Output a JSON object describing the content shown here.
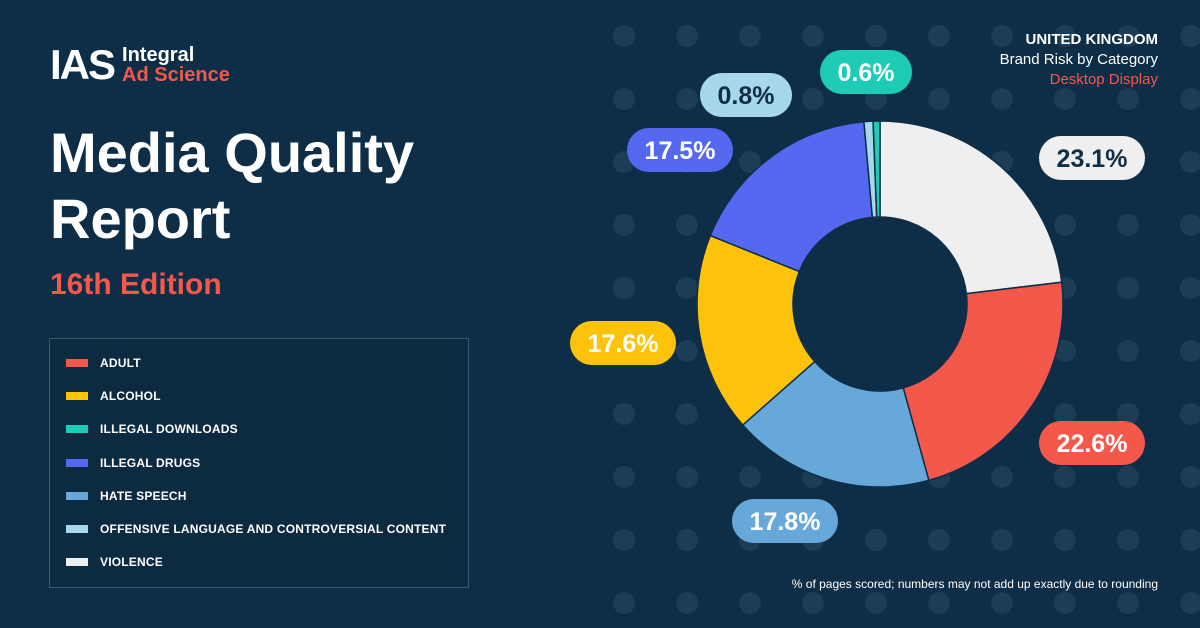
{
  "logo": {
    "mark": "IAS",
    "line1": "Integral",
    "line2": "Ad Science"
  },
  "header": {
    "title": "Media Quality Report",
    "edition": "16th Edition"
  },
  "meta": {
    "country": "UNITED KINGDOM",
    "subtitle": "Brand Risk by Category",
    "platform": "Desktop Display"
  },
  "footnote": "% of pages scored; numbers may not add up exactly due to rounding",
  "colors": {
    "background": "#0e2e47",
    "accent": "#f4584b",
    "adult": "#f4584b",
    "alcohol": "#fcc30a",
    "illegal_downloads": "#1ecbb5",
    "illegal_drugs": "#5469f0",
    "hate_speech": "#67a8da",
    "offensive": "#a7d7ec",
    "violence": "#efefef"
  },
  "chart_data": {
    "type": "donut",
    "title": "Brand Risk by Category",
    "unit": "%",
    "slices": [
      {
        "name": "VIOLENCE",
        "value": 23.1,
        "label": "23.1%",
        "color": "#efefef",
        "text_color": "#0e2e47"
      },
      {
        "name": "ADULT",
        "value": 22.6,
        "label": "22.6%",
        "color": "#f4584b",
        "text_color": "#ffffff"
      },
      {
        "name": "HATE SPEECH",
        "value": 17.8,
        "label": "17.8%",
        "color": "#67a8da",
        "text_color": "#ffffff"
      },
      {
        "name": "ALCOHOL",
        "value": 17.6,
        "label": "17.6%",
        "color": "#fcc30a",
        "text_color": "#ffffff"
      },
      {
        "name": "ILLEGAL DRUGS",
        "value": 17.5,
        "label": "17.5%",
        "color": "#5469f0",
        "text_color": "#ffffff"
      },
      {
        "name": "OFFENSIVE LANGUAGE AND CONTROVERSIAL CONTENT",
        "value": 0.8,
        "label": "0.8%",
        "color": "#a7d7ec",
        "text_color": "#0e2e47"
      },
      {
        "name": "ILLEGAL DOWNLOADS",
        "value": 0.6,
        "label": "0.6%",
        "color": "#1ecbb5",
        "text_color": "#ffffff"
      }
    ],
    "legend": [
      {
        "label": "ADULT",
        "color": "#f4584b"
      },
      {
        "label": "ALCOHOL",
        "color": "#fcc30a"
      },
      {
        "label": "ILLEGAL DOWNLOADS",
        "color": "#1ecbb5"
      },
      {
        "label": "ILLEGAL DRUGS",
        "color": "#5469f0"
      },
      {
        "label": "HATE SPEECH",
        "color": "#67a8da"
      },
      {
        "label": "OFFENSIVE LANGUAGE AND CONTROVERSIAL CONTENT",
        "color": "#a7d7ec"
      },
      {
        "label": "VIOLENCE",
        "color": "#efefef"
      }
    ]
  }
}
